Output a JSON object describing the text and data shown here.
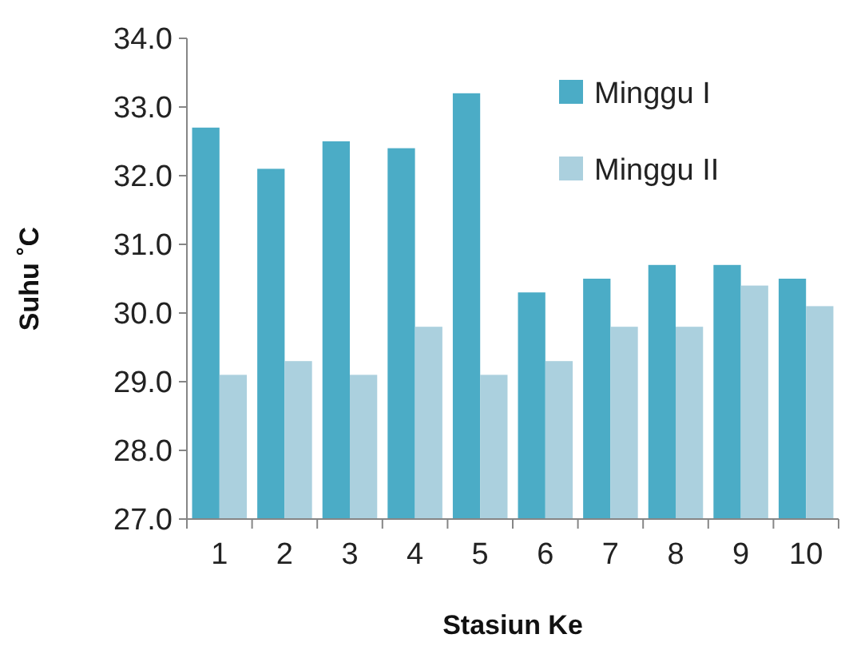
{
  "chart_data": {
    "type": "bar",
    "xlabel": "Stasiun Ke",
    "ylabel": "Suhu ˚C",
    "categories": [
      "1",
      "2",
      "3",
      "4",
      "5",
      "6",
      "7",
      "8",
      "9",
      "10"
    ],
    "series": [
      {
        "name": "Minggu I",
        "color": "#4bacc6",
        "values": [
          32.7,
          32.1,
          32.5,
          32.4,
          33.2,
          30.3,
          30.5,
          30.7,
          30.7,
          30.5
        ]
      },
      {
        "name": "Minggu II",
        "color": "#abd0de",
        "values": [
          29.1,
          29.3,
          29.1,
          29.8,
          29.1,
          29.3,
          29.8,
          29.8,
          30.4,
          30.1
        ]
      }
    ],
    "ylim": [
      27,
      34
    ],
    "yticks": [
      {
        "value": 27,
        "label": "27.0"
      },
      {
        "value": 28,
        "label": "28.0"
      },
      {
        "value": 29,
        "label": "29.0"
      },
      {
        "value": 30,
        "label": "30.0"
      },
      {
        "value": 31,
        "label": "31.0"
      },
      {
        "value": 32,
        "label": "32.0"
      },
      {
        "value": 33,
        "label": "33.0"
      },
      {
        "value": 34,
        "label": "34.0"
      }
    ],
    "legend": "top right",
    "grid": false
  }
}
